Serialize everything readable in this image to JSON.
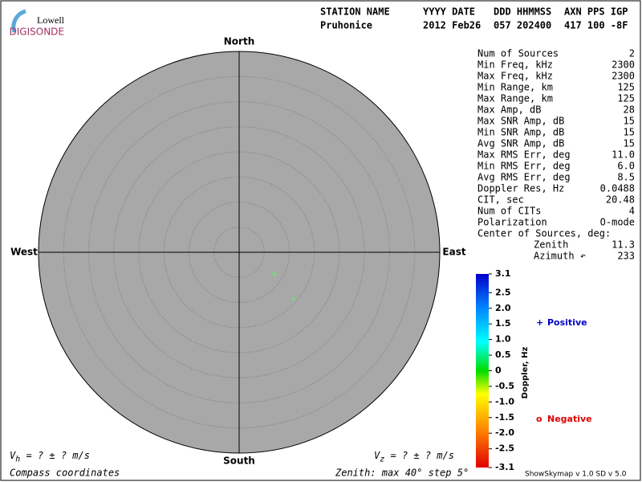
{
  "logo": {
    "top": "Lowell",
    "bottom": "DIGISONDE"
  },
  "header": {
    "labels": [
      "STATION NAME",
      "YYYY DATE",
      "DDD HHMMSS",
      "AXN PPS IGP"
    ],
    "values": [
      "Pruhonice",
      "2012 Feb26",
      "057 202400",
      "417 100 -8F"
    ]
  },
  "stats": [
    {
      "label": "Num of Sources",
      "value": "2"
    },
    {
      "label": "Min Freq, kHz",
      "value": "2300"
    },
    {
      "label": "Max Freq, kHz",
      "value": "2300"
    },
    {
      "label": "Min Range, km",
      "value": "125"
    },
    {
      "label": "Max Range, km",
      "value": "125"
    },
    {
      "label": "Max Amp, dB",
      "value": "28"
    },
    {
      "label": "Max SNR Amp, dB",
      "value": "15"
    },
    {
      "label": "Min SNR Amp, dB",
      "value": "15"
    },
    {
      "label": "Avg SNR Amp, dB",
      "value": "15"
    },
    {
      "label": "Max RMS Err, deg",
      "value": "11.0"
    },
    {
      "label": "Min RMS Err, deg",
      "value": "6.0"
    },
    {
      "label": "Avg RMS Err, deg",
      "value": "8.5"
    },
    {
      "label": "Doppler Res, Hz",
      "value": "0.0488"
    },
    {
      "label": "CIT, sec",
      "value": "20.48"
    },
    {
      "label": "Num of CITs",
      "value": "4"
    },
    {
      "label": "Polarization",
      "value": "O-mode"
    },
    {
      "label": "Center of Sources, deg:"
    },
    {
      "label": "Zenith",
      "value": "11.3",
      "indent": true
    },
    {
      "label": "Azimuth ↶",
      "value": "233",
      "indent": true
    }
  ],
  "chart_data": {
    "type": "polar",
    "directions": {
      "north": "North",
      "east": "East",
      "south": "South",
      "west": "West"
    },
    "rlim": [
      0,
      40
    ],
    "rgrid": [
      5,
      10,
      15,
      20,
      25,
      30,
      35
    ],
    "points": {
      "color": "#66ee66",
      "zenith": [
        8.3,
        14.3
      ],
      "azimuth": [
        121.5,
        130.5
      ]
    },
    "colorbar": {
      "label": "Doppler, Hz",
      "lim": [
        -3.1,
        3.1
      ],
      "ticks": [
        3.1,
        2.5,
        {
          "value": 2,
          "label": "2.0"
        },
        1.5,
        {
          "value": 1,
          "label": "1.0"
        },
        0.5,
        0,
        -0.5,
        {
          "value": -1,
          "label": "-1.0"
        },
        -1.5,
        {
          "value": -2,
          "label": "-2.0"
        },
        -2.5,
        -3.1
      ]
    },
    "legend": [
      {
        "symbol": "+",
        "name": "Positive",
        "color": "#0000cc"
      },
      {
        "symbol": "o",
        "name": "Negative",
        "color": "#dd0000"
      }
    ]
  },
  "footer": {
    "vh": "V<sub>h</sub> =  ? ±  ? m/s",
    "vz": "V<sub>z</sub> =  ? ±  ? m/s",
    "coords": "Compass coordinates",
    "zenith": "Zenith: max 40°  step 5°",
    "version": "ShowSkymap v 1.0   SD v 5.0"
  }
}
